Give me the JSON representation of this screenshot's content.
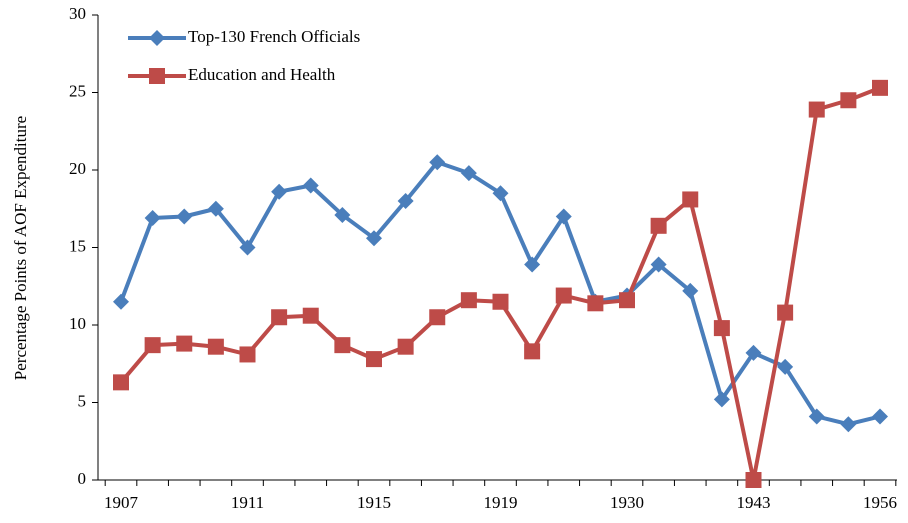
{
  "chart_data": {
    "type": "line",
    "y_label": "Percentage Points of AOF Expenditure",
    "categories": [
      "1907",
      null,
      null,
      null,
      "1911",
      null,
      null,
      null,
      "1915",
      null,
      null,
      null,
      "1919",
      null,
      null,
      null,
      "1930",
      null,
      null,
      null,
      "1943",
      null,
      null,
      null,
      "1956"
    ],
    "series": [
      {
        "name": "Top-130 French Officials",
        "color": "#4a7ebb",
        "marker": "diamond",
        "values": [
          11.5,
          16.9,
          17.0,
          17.5,
          15.0,
          18.6,
          19.0,
          17.1,
          15.6,
          18.0,
          20.5,
          19.8,
          18.5,
          13.9,
          17.0,
          11.5,
          11.9,
          13.9,
          12.2,
          5.2,
          8.2,
          7.3,
          4.1,
          3.6,
          4.1
        ]
      },
      {
        "name": "Education and Health",
        "color": "#be4b48",
        "marker": "square",
        "values": [
          6.3,
          8.7,
          8.8,
          8.6,
          8.1,
          10.5,
          10.6,
          8.7,
          7.8,
          8.6,
          10.5,
          11.6,
          11.5,
          8.3,
          11.9,
          11.4,
          11.6,
          16.4,
          18.1,
          9.8,
          0,
          10.8,
          23.9,
          24.5,
          25.3
        ]
      }
    ],
    "ylim": [
      0,
      30
    ],
    "yticks": [
      0,
      5,
      10,
      15,
      20,
      25,
      30
    ],
    "grid": false,
    "legend": "upper left"
  }
}
